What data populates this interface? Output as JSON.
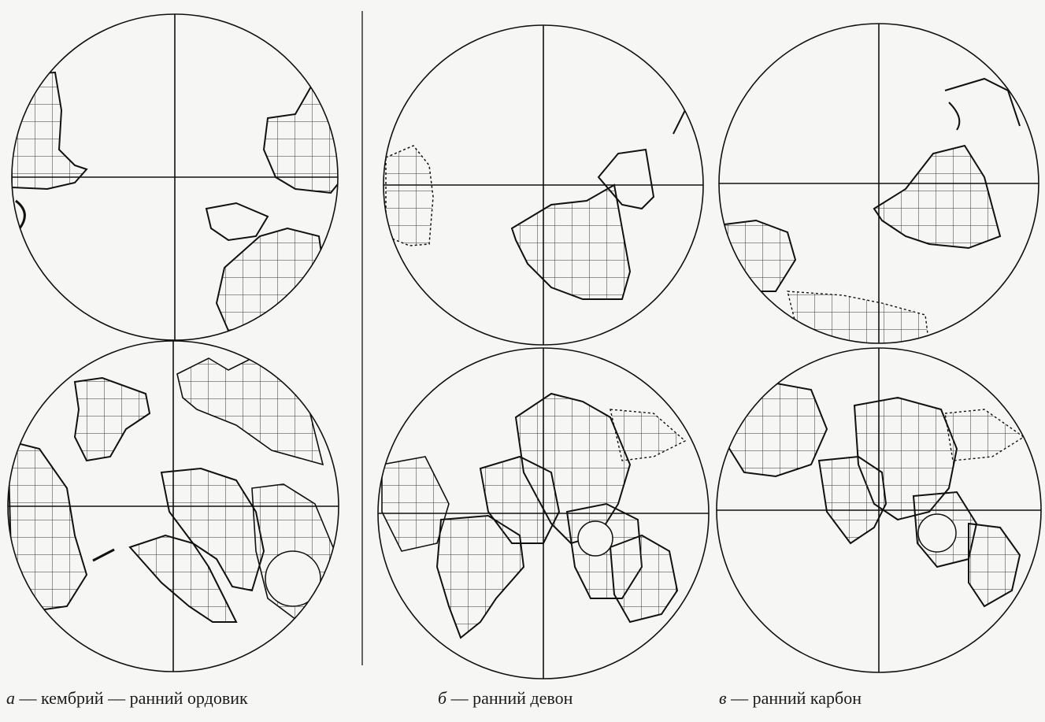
{
  "panels": [
    {
      "id": "a",
      "letter": "а",
      "caption": " — кембрий — ранний ордовик"
    },
    {
      "id": "b",
      "letter": "б",
      "caption": " — ранний девон"
    },
    {
      "id": "v",
      "letter": "в",
      "caption": " — ранний карбон"
    }
  ],
  "colors": {
    "ink": "#1a1a1a",
    "paper": "#f6f6f4"
  }
}
